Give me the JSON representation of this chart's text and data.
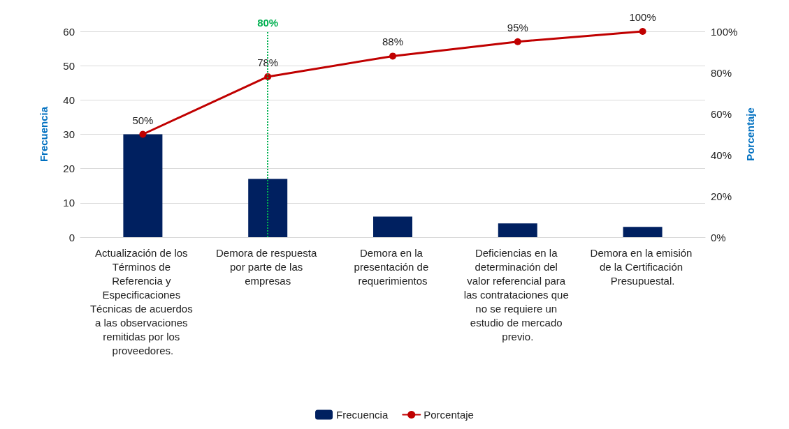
{
  "chart_data": {
    "type": "bar",
    "ylabel": "Frecuencia",
    "y2label": "Porcentaje",
    "categories": [
      "Actualización de los Términos de Referencia y Especificaciones Técnicas de acuerdos a las observaciones remitidas por los proveedores.",
      "Demora de respuesta por parte de las empresas",
      "Demora en la presentación de requerimientos",
      "Deficiencias en la determinación del valor referencial para las contrataciones que no se requiere un estudio de mercado previo.",
      "Demora en la emisión de la Certificación Presupuestal."
    ],
    "series": [
      {
        "name": "Frecuencia",
        "color": "#002060",
        "values": [
          30,
          17,
          6,
          4,
          3
        ]
      },
      {
        "name": "Porcentaje",
        "type": "line",
        "axis": "y2",
        "color": "#c00000",
        "values": [
          50,
          78,
          88,
          95,
          100
        ],
        "value_labels": [
          "50%",
          "78%",
          "88%",
          "95%",
          "100%"
        ]
      }
    ],
    "ylim": [
      0,
      60
    ],
    "yticks": [
      0,
      10,
      20,
      30,
      40,
      50,
      60
    ],
    "y2lim": [
      0,
      100
    ],
    "y2ticks": [
      {
        "value": 0,
        "label": "0%"
      },
      {
        "value": 20,
        "label": "20%"
      },
      {
        "value": 40,
        "label": "40%"
      },
      {
        "value": 60,
        "label": "60%"
      },
      {
        "value": 80,
        "label": "80%"
      },
      {
        "value": 100,
        "label": "100%"
      }
    ],
    "ref_lines": [
      {
        "axis": "x",
        "value": "Demora de respuesta por parte de las empresas",
        "label": "80%",
        "color": "#00b050",
        "line_style": "dotted"
      }
    ],
    "grid": "y",
    "legend": "bottom",
    "marker": "circle",
    "line_style": "solid"
  }
}
